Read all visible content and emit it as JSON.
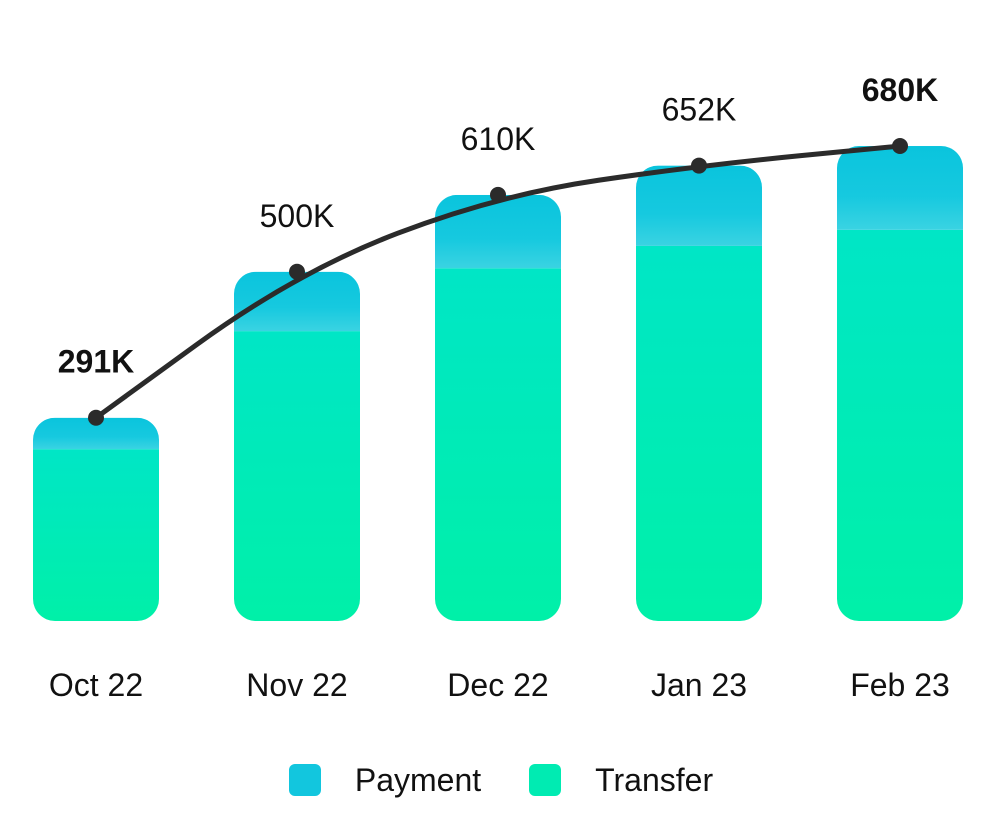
{
  "chart_data": {
    "type": "bar",
    "title": "",
    "xlabel": "",
    "ylabel": "",
    "categories": [
      "Oct 22",
      "Nov 22",
      "Dec 22",
      "Jan 23",
      "Feb 23"
    ],
    "series": [
      {
        "name": "Payment",
        "color": "#12C6DE",
        "values": [
          45,
          85,
          105,
          115,
          120
        ]
      },
      {
        "name": "Transfer",
        "color": "#00EBB2",
        "values": [
          246,
          415,
          505,
          537,
          560
        ]
      }
    ],
    "line": {
      "values": [
        291,
        500,
        610,
        652,
        680
      ],
      "labels": [
        "291K",
        "500K",
        "610K",
        "652K",
        "680K"
      ],
      "bold_labels": [
        true,
        false,
        false,
        false,
        true
      ],
      "color": "#2B2B2B"
    },
    "ylim": [
      0,
      700
    ],
    "grid": false,
    "legend_position": "bottom-center"
  }
}
